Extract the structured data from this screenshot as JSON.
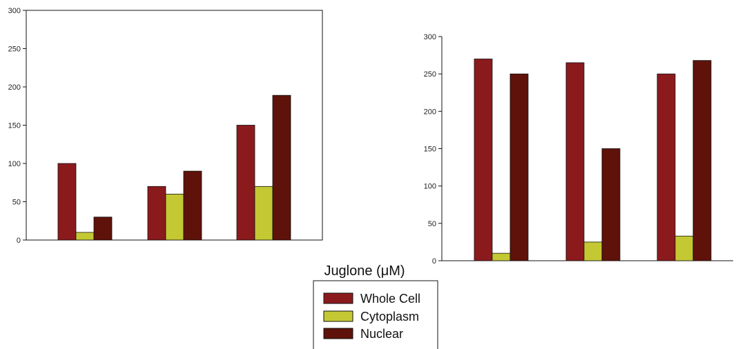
{
  "xlabel": "Juglone (μM)",
  "legend": [
    "Whole Cell",
    "Cytoplasm",
    "Nuclear"
  ],
  "colors": [
    "#8b1a1d",
    "#c4c933",
    "#5e1209"
  ],
  "chart_data": [
    {
      "type": "bar",
      "categories": [
        "",
        "",
        ""
      ],
      "series": [
        {
          "name": "Whole Cell",
          "values": [
            100,
            70,
            150
          ]
        },
        {
          "name": "Cytoplasm",
          "values": [
            10,
            60,
            70
          ]
        },
        {
          "name": "Nuclear",
          "values": [
            30,
            90,
            189
          ]
        }
      ],
      "ylim": [
        0,
        300
      ],
      "yticks": [
        "0",
        "50",
        "100",
        "150",
        "200",
        "250",
        "300"
      ],
      "grid": false,
      "frame": "box"
    },
    {
      "type": "bar",
      "categories": [
        "",
        "",
        ""
      ],
      "series": [
        {
          "name": "Whole Cell",
          "values": [
            270,
            265,
            250
          ]
        },
        {
          "name": "Cytoplasm",
          "values": [
            10,
            25,
            33
          ]
        },
        {
          "name": "Nuclear",
          "values": [
            250,
            150,
            268
          ]
        }
      ],
      "ylim": [
        0,
        300
      ],
      "yticks": [
        "0",
        "50",
        "100",
        "150",
        "200",
        "250",
        "300"
      ],
      "grid": false,
      "frame": "axes-only"
    }
  ]
}
